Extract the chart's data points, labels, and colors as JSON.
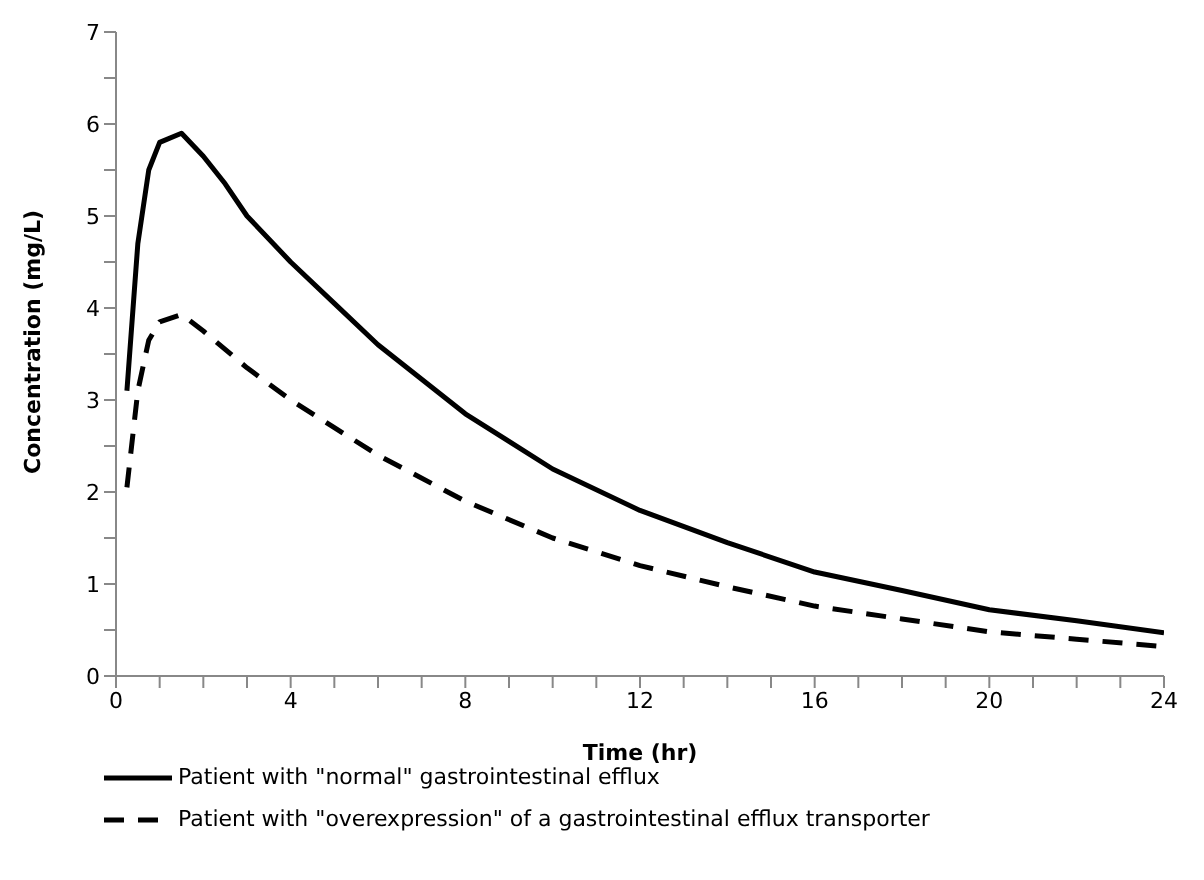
{
  "chart_data": {
    "type": "line",
    "xlabel": "Time (hr)",
    "ylabel": "Concentration (mg/L)",
    "x": [
      0.25,
      0.5,
      0.75,
      1,
      1.5,
      2,
      2.5,
      3,
      4,
      5,
      6,
      8,
      10,
      12,
      14,
      16,
      18,
      20,
      22,
      24
    ],
    "series": [
      {
        "name": "Patient with \"normal\" gastrointestinal efflux",
        "color": "#000000",
        "line_style": "solid",
        "values": [
          3.1,
          4.7,
          5.5,
          5.8,
          5.9,
          5.65,
          5.35,
          5.0,
          4.5,
          4.05,
          3.6,
          2.85,
          2.25,
          1.8,
          1.45,
          1.13,
          0.93,
          0.72,
          0.6,
          0.47
        ]
      },
      {
        "name": "Patient with \"overexpression\" of a gastrointestinal efflux transporter",
        "color": "#000000",
        "line_style": "dashed",
        "values": [
          2.05,
          3.1,
          3.65,
          3.85,
          3.93,
          3.75,
          3.55,
          3.35,
          3.0,
          2.7,
          2.4,
          1.9,
          1.5,
          1.2,
          0.97,
          0.76,
          0.62,
          0.48,
          0.4,
          0.32
        ]
      }
    ],
    "xlim": [
      0,
      24
    ],
    "xticks": [
      0,
      {
        "value": 1,
        "label": null
      },
      {
        "value": 2,
        "label": null
      },
      {
        "value": 3,
        "label": null
      },
      4,
      {
        "value": 5,
        "label": null
      },
      {
        "value": 6,
        "label": null
      },
      {
        "value": 7,
        "label": null
      },
      8,
      {
        "value": 9,
        "label": null
      },
      {
        "value": 10,
        "label": null
      },
      {
        "value": 11,
        "label": null
      },
      12,
      {
        "value": 13,
        "label": null
      },
      {
        "value": 14,
        "label": null
      },
      {
        "value": 15,
        "label": null
      },
      16,
      {
        "value": 17,
        "label": null
      },
      {
        "value": 18,
        "label": null
      },
      {
        "value": 19,
        "label": null
      },
      20,
      {
        "value": 21,
        "label": null
      },
      {
        "value": 22,
        "label": null
      },
      {
        "value": 23,
        "label": null
      },
      24
    ],
    "ylim": [
      0,
      7
    ],
    "yticks": [
      0,
      {
        "value": 0.5,
        "label": null
      },
      1,
      {
        "value": 1.5,
        "label": null
      },
      2,
      {
        "value": 2.5,
        "label": null
      },
      3,
      {
        "value": 3.5,
        "label": null
      },
      4,
      {
        "value": 4.5,
        "label": null
      },
      5,
      {
        "value": 5.5,
        "label": null
      },
      6,
      {
        "value": 6.5,
        "label": null
      },
      7
    ],
    "grid": false,
    "legend": "bottom",
    "marker": "none"
  }
}
